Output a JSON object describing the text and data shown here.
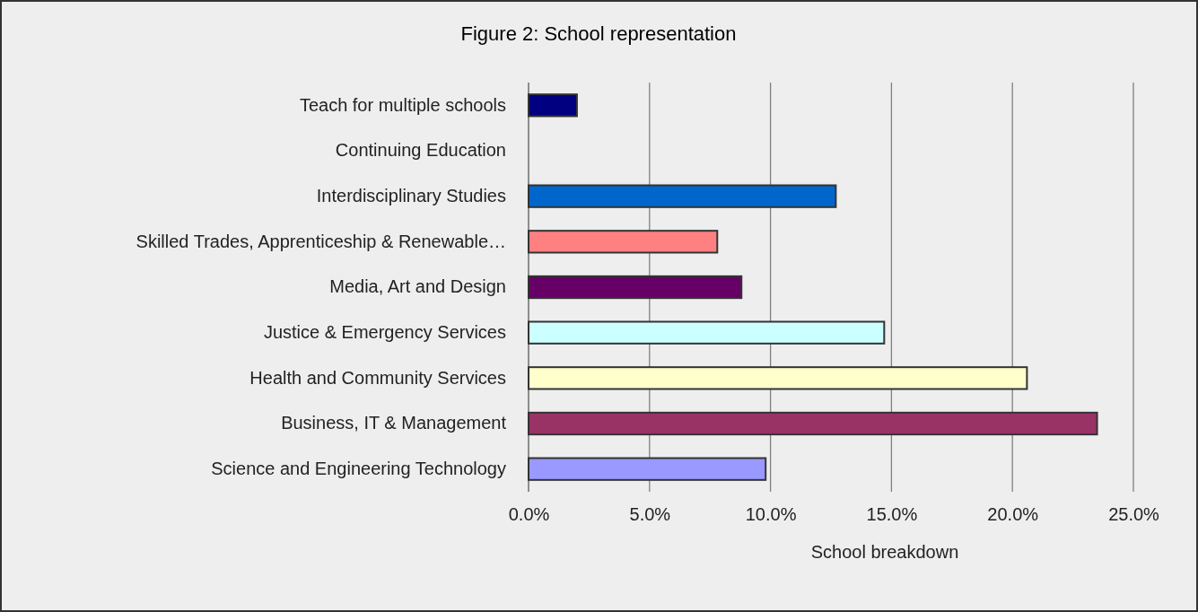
{
  "chart_data": {
    "type": "bar",
    "orientation": "horizontal",
    "title": "Figure 2:  School representation",
    "xlabel": "School breakdown",
    "categories": [
      "Teach for multiple schools",
      "Continuing Education",
      "Interdisciplinary Studies",
      "Skilled Trades, Apprenticeship & Renewable…",
      "Media, Art and Design",
      "Justice & Emergency Services",
      "Health and Community Services",
      "Business, IT & Management",
      "Science and Engineering Technology"
    ],
    "values": [
      2.0,
      0,
      12.7,
      7.8,
      8.8,
      14.7,
      20.6,
      23.5,
      9.8
    ],
    "colors": [
      "#000080",
      "#3366ff",
      "#0066cc",
      "#ff8080",
      "#660066",
      "#ccffff",
      "#ffffcc",
      "#993366",
      "#9999ff"
    ],
    "xlim": [
      0,
      25
    ],
    "xticks": [
      {
        "value": 0,
        "label": "0.0%"
      },
      {
        "value": 5,
        "label": "5.0%"
      },
      {
        "value": 10,
        "label": "10.0%"
      },
      {
        "value": 15,
        "label": "15.0%"
      },
      {
        "value": 20,
        "label": "20.0%"
      },
      {
        "value": 25,
        "label": "25.0%"
      }
    ],
    "grid": "x"
  }
}
